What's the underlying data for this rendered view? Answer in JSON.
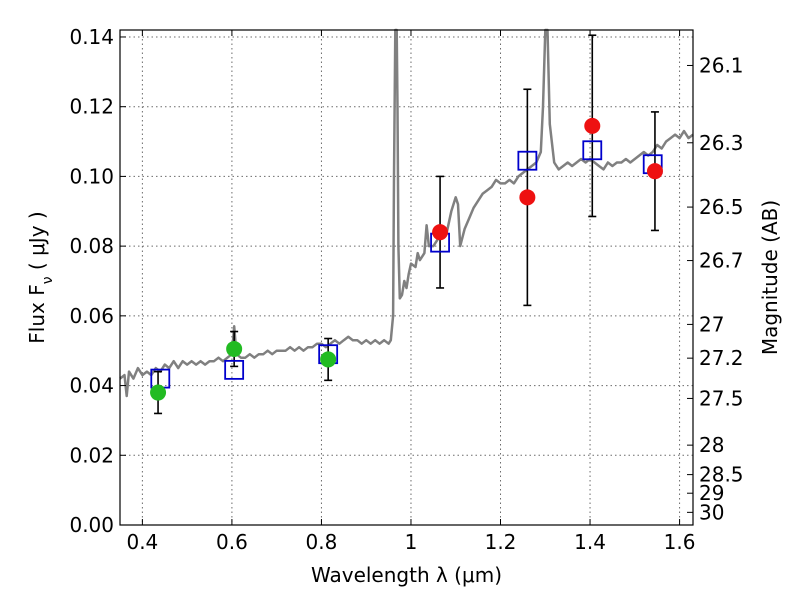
{
  "chart_data": {
    "type": "scatter",
    "xlabel": "Wavelength  λ (μm)",
    "ylabel": "Flux  F_ν  ( μJy )",
    "ylabel_right": "Magnitude (AB)",
    "xlim": [
      0.35,
      1.63
    ],
    "ylim": [
      0.0,
      0.142
    ],
    "grid": true,
    "x_ticks": [
      0.4,
      0.6,
      0.8,
      1.0,
      1.2,
      1.4,
      1.6
    ],
    "x_tick_labels": [
      "0.4",
      "0.6",
      "0.8",
      "1",
      "1.2",
      "1.4",
      "1.6"
    ],
    "y_ticks": [
      0.0,
      0.02,
      0.04,
      0.06,
      0.08,
      0.1,
      0.12,
      0.14
    ],
    "y_tick_labels": [
      "0.00",
      "0.02",
      "0.04",
      "0.06",
      "0.08",
      "0.10",
      "0.12",
      "0.14"
    ],
    "mag_ticks": [
      {
        "mag": 26.1,
        "label": "26.1"
      },
      {
        "mag": 26.3,
        "label": "26.3"
      },
      {
        "mag": 26.5,
        "label": "26.5"
      },
      {
        "mag": 26.7,
        "label": "26.7"
      },
      {
        "mag": 27.0,
        "label": "27"
      },
      {
        "mag": 27.2,
        "label": "27.2"
      },
      {
        "mag": 27.5,
        "label": "27.5"
      },
      {
        "mag": 28.0,
        "label": "28"
      },
      {
        "mag": 28.5,
        "label": "28.5"
      },
      {
        "mag": 29.0,
        "label": "29"
      },
      {
        "mag": 30.0,
        "label": "30"
      }
    ],
    "spectrum": {
      "color": "#808080",
      "points": [
        [
          0.35,
          0.042
        ],
        [
          0.36,
          0.043
        ],
        [
          0.365,
          0.037
        ],
        [
          0.37,
          0.044
        ],
        [
          0.38,
          0.042
        ],
        [
          0.39,
          0.045
        ],
        [
          0.4,
          0.043
        ],
        [
          0.41,
          0.044
        ],
        [
          0.42,
          0.043
        ],
        [
          0.43,
          0.045
        ],
        [
          0.44,
          0.044
        ],
        [
          0.45,
          0.046
        ],
        [
          0.46,
          0.045
        ],
        [
          0.47,
          0.047
        ],
        [
          0.48,
          0.045
        ],
        [
          0.49,
          0.047
        ],
        [
          0.5,
          0.046
        ],
        [
          0.51,
          0.047
        ],
        [
          0.52,
          0.046
        ],
        [
          0.53,
          0.047
        ],
        [
          0.54,
          0.046
        ],
        [
          0.55,
          0.047
        ],
        [
          0.56,
          0.047
        ],
        [
          0.57,
          0.048
        ],
        [
          0.58,
          0.047
        ],
        [
          0.59,
          0.048
        ],
        [
          0.6,
          0.049
        ],
        [
          0.605,
          0.057
        ],
        [
          0.61,
          0.049
        ],
        [
          0.62,
          0.048
        ],
        [
          0.63,
          0.048
        ],
        [
          0.64,
          0.049
        ],
        [
          0.65,
          0.048
        ],
        [
          0.66,
          0.049
        ],
        [
          0.67,
          0.049
        ],
        [
          0.68,
          0.05
        ],
        [
          0.69,
          0.049
        ],
        [
          0.7,
          0.05
        ],
        [
          0.71,
          0.05
        ],
        [
          0.72,
          0.05
        ],
        [
          0.73,
          0.051
        ],
        [
          0.74,
          0.05
        ],
        [
          0.75,
          0.051
        ],
        [
          0.76,
          0.05
        ],
        [
          0.77,
          0.051
        ],
        [
          0.78,
          0.051
        ],
        [
          0.79,
          0.052
        ],
        [
          0.8,
          0.052
        ],
        [
          0.81,
          0.051
        ],
        [
          0.82,
          0.052
        ],
        [
          0.83,
          0.053
        ],
        [
          0.84,
          0.052
        ],
        [
          0.85,
          0.053
        ],
        [
          0.86,
          0.054
        ],
        [
          0.87,
          0.053
        ],
        [
          0.88,
          0.053
        ],
        [
          0.89,
          0.052
        ],
        [
          0.9,
          0.053
        ],
        [
          0.91,
          0.052
        ],
        [
          0.92,
          0.053
        ],
        [
          0.93,
          0.052
        ],
        [
          0.94,
          0.053
        ],
        [
          0.95,
          0.052
        ],
        [
          0.955,
          0.053
        ],
        [
          0.96,
          0.06
        ],
        [
          0.962,
          0.1
        ],
        [
          0.965,
          0.142
        ],
        [
          0.968,
          0.142
        ],
        [
          0.97,
          0.12
        ],
        [
          0.972,
          0.08
        ],
        [
          0.975,
          0.065
        ],
        [
          0.98,
          0.066
        ],
        [
          0.985,
          0.07
        ],
        [
          0.99,
          0.068
        ],
        [
          0.995,
          0.072
        ],
        [
          1.0,
          0.075
        ],
        [
          1.01,
          0.074
        ],
        [
          1.015,
          0.078
        ],
        [
          1.02,
          0.076
        ],
        [
          1.03,
          0.078
        ],
        [
          1.035,
          0.086
        ],
        [
          1.04,
          0.08
        ],
        [
          1.05,
          0.08
        ],
        [
          1.06,
          0.082
        ],
        [
          1.07,
          0.083
        ],
        [
          1.08,
          0.084
        ],
        [
          1.09,
          0.09
        ],
        [
          1.1,
          0.094
        ],
        [
          1.105,
          0.092
        ],
        [
          1.11,
          0.08
        ],
        [
          1.12,
          0.085
        ],
        [
          1.13,
          0.088
        ],
        [
          1.14,
          0.091
        ],
        [
          1.15,
          0.093
        ],
        [
          1.16,
          0.095
        ],
        [
          1.17,
          0.096
        ],
        [
          1.18,
          0.097
        ],
        [
          1.19,
          0.099
        ],
        [
          1.2,
          0.098
        ],
        [
          1.21,
          0.098
        ],
        [
          1.22,
          0.099
        ],
        [
          1.23,
          0.098
        ],
        [
          1.24,
          0.1
        ],
        [
          1.25,
          0.101
        ],
        [
          1.26,
          0.102
        ],
        [
          1.27,
          0.103
        ],
        [
          1.28,
          0.104
        ],
        [
          1.29,
          0.107
        ],
        [
          1.295,
          0.12
        ],
        [
          1.3,
          0.142
        ],
        [
          1.305,
          0.142
        ],
        [
          1.31,
          0.115
        ],
        [
          1.32,
          0.104
        ],
        [
          1.33,
          0.102
        ],
        [
          1.34,
          0.103
        ],
        [
          1.35,
          0.104
        ],
        [
          1.36,
          0.103
        ],
        [
          1.37,
          0.104
        ],
        [
          1.38,
          0.105
        ],
        [
          1.39,
          0.104
        ],
        [
          1.4,
          0.105
        ],
        [
          1.41,
          0.104
        ],
        [
          1.42,
          0.103
        ],
        [
          1.43,
          0.102
        ],
        [
          1.44,
          0.104
        ],
        [
          1.45,
          0.103
        ],
        [
          1.46,
          0.104
        ],
        [
          1.47,
          0.104
        ],
        [
          1.48,
          0.105
        ],
        [
          1.49,
          0.104
        ],
        [
          1.5,
          0.105
        ],
        [
          1.51,
          0.106
        ],
        [
          1.52,
          0.107
        ],
        [
          1.53,
          0.106
        ],
        [
          1.54,
          0.107
        ],
        [
          1.55,
          0.109
        ],
        [
          1.56,
          0.108
        ],
        [
          1.57,
          0.11
        ],
        [
          1.58,
          0.111
        ],
        [
          1.59,
          0.112
        ],
        [
          1.6,
          0.111
        ],
        [
          1.61,
          0.113
        ],
        [
          1.62,
          0.111
        ],
        [
          1.63,
          0.112
        ]
      ]
    },
    "model_points": {
      "color": "#0000cc",
      "points": [
        {
          "x": 0.44,
          "y": 0.042
        },
        {
          "x": 0.605,
          "y": 0.0445
        },
        {
          "x": 0.815,
          "y": 0.049
        },
        {
          "x": 1.065,
          "y": 0.081
        },
        {
          "x": 1.26,
          "y": 0.1045
        },
        {
          "x": 1.405,
          "y": 0.1075
        },
        {
          "x": 1.54,
          "y": 0.1035
        }
      ]
    },
    "observed_green": {
      "color": "#22bb22",
      "points": [
        {
          "x": 0.435,
          "y": 0.038,
          "yerr": 0.006
        },
        {
          "x": 0.605,
          "y": 0.0505,
          "yerr": 0.005
        },
        {
          "x": 0.815,
          "y": 0.0475,
          "yerr": 0.006
        }
      ]
    },
    "observed_red": {
      "color": "#ee1111",
      "points": [
        {
          "x": 1.065,
          "y": 0.084,
          "yerr": 0.016
        },
        {
          "x": 1.26,
          "y": 0.094,
          "yerr": 0.031
        },
        {
          "x": 1.405,
          "y": 0.1145,
          "yerr": 0.026
        },
        {
          "x": 1.545,
          "y": 0.1015,
          "yerr": 0.017
        }
      ]
    }
  }
}
